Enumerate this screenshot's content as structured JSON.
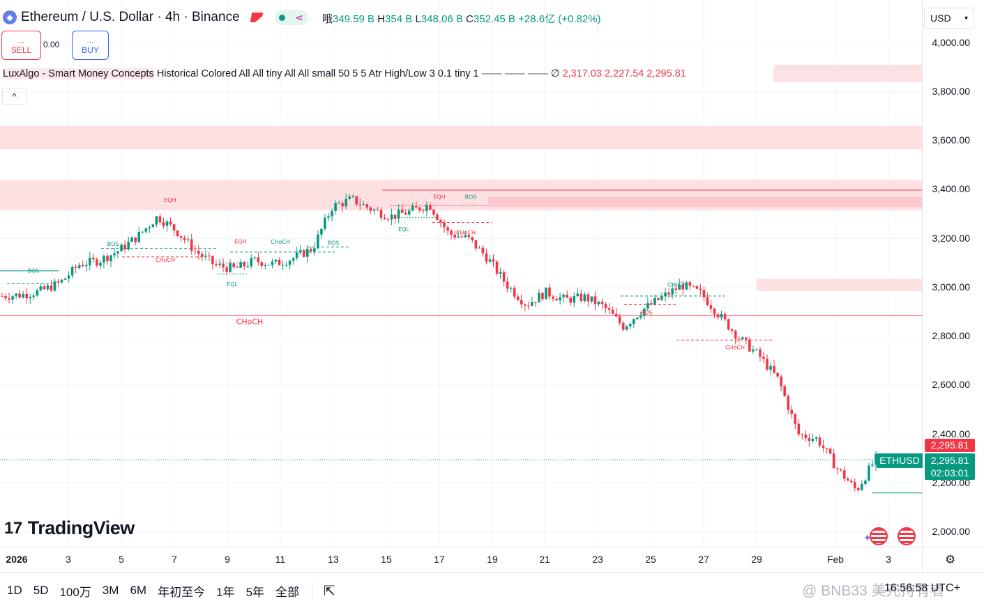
{
  "header": {
    "title": "Ethereum / U.S. Dollar · 4h · Binance",
    "ohlc": {
      "vol_label": "哦",
      "vol_value": "349.59 B",
      "h_label": "H",
      "h_value": "354 B",
      "l_label": "L",
      "l_value": "348.06 B",
      "c_label": "C",
      "c_value": "352.45 B",
      "change": "+28.6亿",
      "change_pct": "(+0.82%)"
    },
    "currency": "USD"
  },
  "trade": {
    "sell_dots": "...",
    "sell_label": "SELL",
    "spread": "0.00",
    "buy_dots": "...",
    "buy_label": "BUY"
  },
  "indicator": {
    "name": "LuxAlgo - Smart Money Concepts",
    "params": "Historical Colored All All tiny All All small 50 5 5 Atr High/Low 3 0.1 tiny 1",
    "lines": "—— —— ——",
    "null_sym": "∅",
    "values": "2,317.03  2,227.54  2,295.81"
  },
  "collapse_glyph": "^",
  "y_axis": [
    "4,000.00",
    "3,800.00",
    "3,600.00",
    "3,400.00",
    "3,200.00",
    "3,000.00",
    "2,800.00",
    "2,600.00",
    "2,400.00",
    "2,200.00",
    "2,000.00"
  ],
  "x_axis": [
    {
      "label": "2026",
      "bold": true
    },
    {
      "label": "3"
    },
    {
      "label": "5"
    },
    {
      "label": "7"
    },
    {
      "label": "9"
    },
    {
      "label": "11"
    },
    {
      "label": "13"
    },
    {
      "label": "15"
    },
    {
      "label": "17"
    },
    {
      "label": "19"
    },
    {
      "label": "21"
    },
    {
      "label": "23"
    },
    {
      "label": "25"
    },
    {
      "label": "27"
    },
    {
      "label": "29"
    },
    {
      "label": "Feb"
    },
    {
      "label": "3"
    }
  ],
  "price_tags": {
    "indicator_value": "2,295.81",
    "symbol": "ETHUSD",
    "last_price": "2,295.81",
    "countdown": "02:03:01"
  },
  "smc_labels": [
    {
      "text": "BOS",
      "color": "#089981"
    },
    {
      "text": "BOS",
      "color": "#089981"
    },
    {
      "text": "EQH",
      "color": "#f23645"
    },
    {
      "text": "CHoCH",
      "color": "#f23645"
    },
    {
      "text": "EQH",
      "color": "#f23645"
    },
    {
      "text": "CHoCH",
      "color": "#089981"
    },
    {
      "text": "EQL",
      "color": "#089981"
    },
    {
      "text": "BOS",
      "color": "#089981"
    },
    {
      "text": "CHoCH",
      "color": "#f23645"
    },
    {
      "text": "EQH",
      "color": "#f23645"
    },
    {
      "text": "BOS",
      "color": "#089981"
    },
    {
      "text": "EQL",
      "color": "#089981"
    },
    {
      "text": "CHoCH",
      "color": "#f23645"
    },
    {
      "text": "CHoCH",
      "color": "#089981"
    },
    {
      "text": "BOS",
      "color": "#f23645"
    },
    {
      "text": "CHoCH",
      "color": "#f23645"
    }
  ],
  "brand": "TradingView",
  "timeframes": [
    "1D",
    "5D",
    "100万",
    "3M",
    "6M",
    "年初至今",
    "1年",
    "5年",
    "全部"
  ],
  "time_display": "16:56:58 UTC+",
  "watermark": "@ BNB33 美元持有者",
  "colors": {
    "up": "#089981",
    "down": "#f23645",
    "zone": "#fde0e2",
    "grid": "#f0f3fa"
  },
  "chart_data": {
    "type": "candlestick",
    "ylim": [
      1950,
      4080
    ],
    "y_ticks": [
      2000,
      2200,
      2400,
      2600,
      2800,
      3000,
      3200,
      3400,
      3600,
      3800,
      4000
    ],
    "x": [
      "2026-01-01",
      "2026-01-03",
      "2026-01-05",
      "2026-01-07",
      "2026-01-09",
      "2026-01-11",
      "2026-01-13",
      "2026-01-15",
      "2026-01-17",
      "2026-01-19",
      "2026-01-21",
      "2026-01-23",
      "2026-01-25",
      "2026-01-27",
      "2026-01-29",
      "2026-02-01",
      "2026-02-03"
    ],
    "close_path": [
      2965,
      2970,
      2985,
      3020,
      3095,
      3110,
      3150,
      3210,
      3290,
      3230,
      3145,
      3090,
      3075,
      3110,
      3095,
      3120,
      3160,
      3330,
      3360,
      3320,
      3290,
      3310,
      3340,
      3220,
      3200,
      3120,
      3010,
      2930,
      2980,
      2950,
      2960,
      2920,
      2840,
      2910,
      2960,
      3010,
      2975,
      2880,
      2790,
      2720,
      2620,
      2400,
      2380,
      2260,
      2170,
      2300
    ],
    "last_price": 2295.81,
    "zones": [
      [
        3565,
        3660
      ],
      [
        3315,
        3440
      ],
      [
        3330,
        3370
      ],
      [
        2985,
        3035
      ]
    ]
  }
}
